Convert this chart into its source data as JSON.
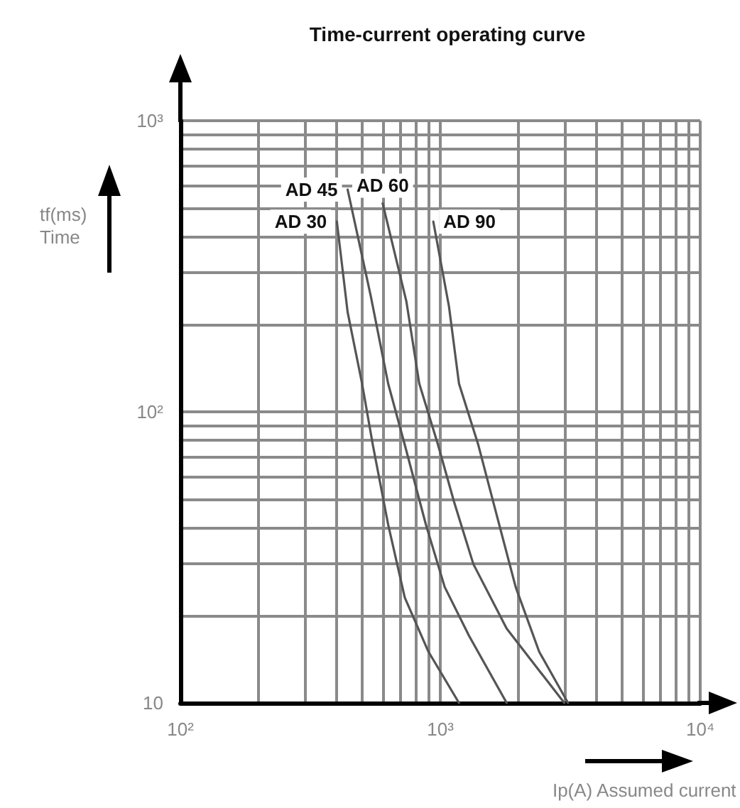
{
  "chart_data": {
    "type": "line",
    "title": "Time-current operating curve",
    "xlabel": "Ip(A) Assumed current",
    "ylabel": "tf(ms)\nTime",
    "log": "xy",
    "grid": true,
    "marker": "none",
    "line_style": "solid",
    "xlim": [
      100,
      10000
    ],
    "ylim": [
      10,
      1000
    ],
    "xticks": [
      {
        "value": 100,
        "label": "10²"
      },
      {
        "value": 200,
        "label": null
      },
      {
        "value": 300,
        "label": null
      },
      {
        "value": 400,
        "label": null
      },
      {
        "value": 500,
        "label": null
      },
      {
        "value": 600,
        "label": null
      },
      {
        "value": 700,
        "label": null
      },
      {
        "value": 800,
        "label": null
      },
      {
        "value": 900,
        "label": null
      },
      {
        "value": 1000,
        "label": "10³"
      },
      {
        "value": 2000,
        "label": null
      },
      {
        "value": 3000,
        "label": null
      },
      {
        "value": 4000,
        "label": null
      },
      {
        "value": 5000,
        "label": null
      },
      {
        "value": 6000,
        "label": null
      },
      {
        "value": 7000,
        "label": null
      },
      {
        "value": 8000,
        "label": null
      },
      {
        "value": 9000,
        "label": null
      },
      {
        "value": 10000,
        "label": "10⁴"
      }
    ],
    "yticks": [
      10,
      {
        "value": 20,
        "label": null
      },
      {
        "value": 30,
        "label": null
      },
      {
        "value": 40,
        "label": null
      },
      {
        "value": 50,
        "label": null
      },
      {
        "value": 60,
        "label": null
      },
      {
        "value": 70,
        "label": null
      },
      {
        "value": 80,
        "label": null
      },
      {
        "value": 90,
        "label": null
      },
      {
        "value": 100,
        "label": "10²"
      },
      {
        "value": 200,
        "label": null
      },
      {
        "value": 300,
        "label": null
      },
      {
        "value": 400,
        "label": null
      },
      {
        "value": 500,
        "label": null
      },
      {
        "value": 600,
        "label": null
      },
      {
        "value": 700,
        "label": null
      },
      {
        "value": 800,
        "label": null
      },
      {
        "value": 900,
        "label": null
      },
      {
        "value": 1000,
        "label": "10³"
      }
    ],
    "series": [
      {
        "name": "AD 30",
        "color": "#555555",
        "x": [
          400,
          440,
          500,
          550,
          630,
          730,
          900,
          1180
        ],
        "values": [
          450,
          220,
          125,
          77,
          41,
          23,
          15,
          10
        ]
      },
      {
        "name": "AD 45",
        "color": "#555555",
        "x": [
          440,
          540,
          630,
          730,
          880,
          1040,
          1290,
          1800
        ],
        "values": [
          580,
          250,
          125,
          77,
          41,
          25,
          17,
          10
        ]
      },
      {
        "name": "AD 60",
        "color": "#555555",
        "x": [
          600,
          740,
          830,
          980,
          1130,
          1340,
          1800,
          3000
        ],
        "values": [
          520,
          240,
          125,
          77,
          49,
          30,
          18,
          10
        ]
      },
      {
        "name": "AD 90",
        "color": "#555555",
        "x": [
          940,
          1080,
          1180,
          1400,
          1650,
          1950,
          2400,
          3100
        ],
        "values": [
          450,
          230,
          125,
          77,
          44,
          25,
          15,
          10
        ]
      }
    ]
  }
}
